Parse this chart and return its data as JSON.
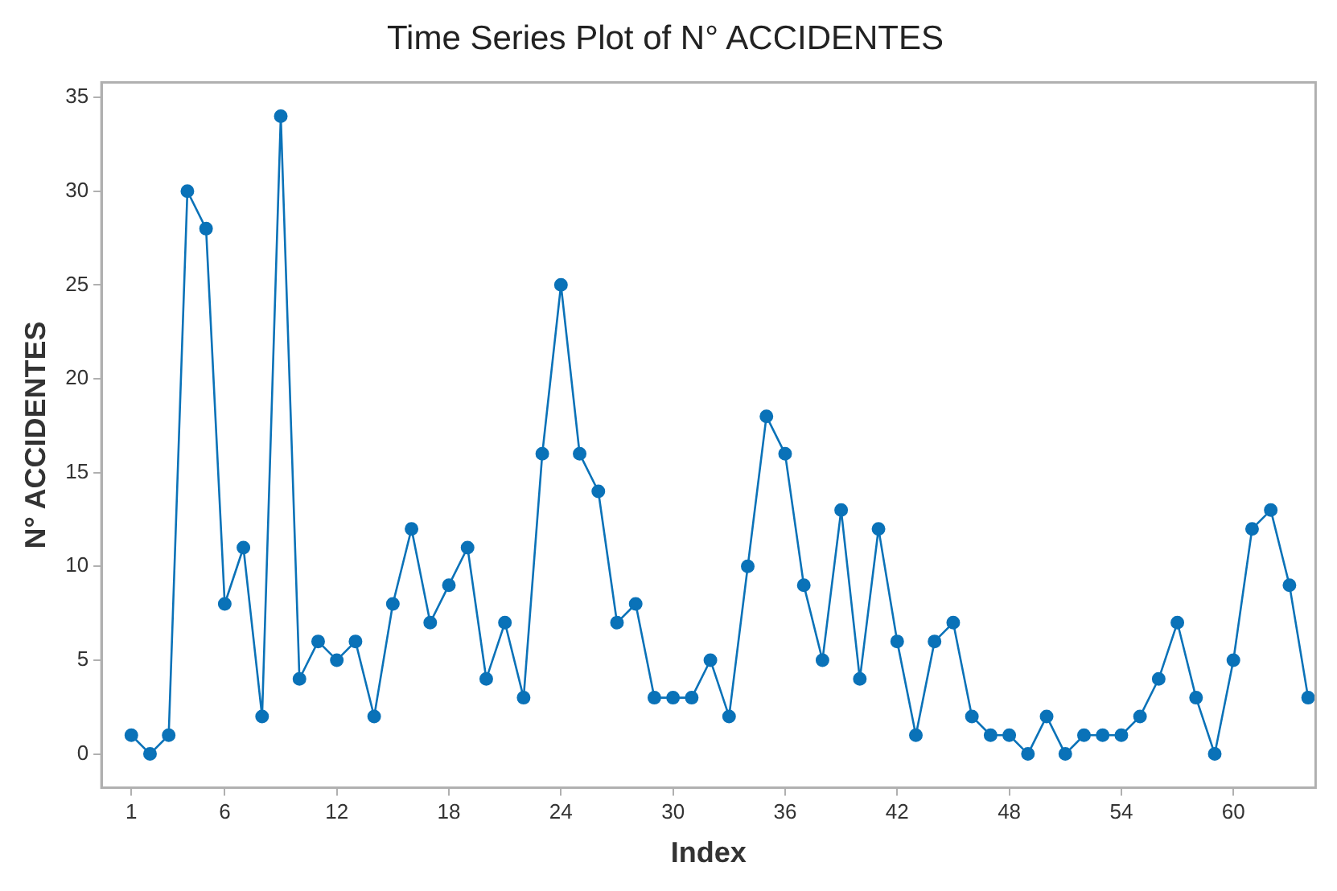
{
  "chart_data": {
    "type": "line",
    "title": "Time Series Plot of N° ACCIDENTES",
    "xlabel": "Index",
    "ylabel": "N° ACCIDENTES",
    "x": [
      1,
      2,
      3,
      4,
      5,
      6,
      7,
      8,
      9,
      10,
      11,
      12,
      13,
      14,
      15,
      16,
      17,
      18,
      19,
      20,
      21,
      22,
      23,
      24,
      25,
      26,
      27,
      28,
      29,
      30,
      31,
      32,
      33,
      34,
      35,
      36,
      37,
      38,
      39,
      40,
      41,
      42,
      43,
      44,
      45,
      46,
      47,
      48,
      49,
      50,
      51,
      52,
      53,
      54,
      55,
      56,
      57,
      58,
      59,
      60,
      61,
      62,
      63,
      64
    ],
    "series": [
      {
        "color": "#0a72b8",
        "values": [
          1,
          0,
          1,
          30,
          28,
          8,
          11,
          2,
          34,
          4,
          6,
          5,
          6,
          2,
          8,
          12,
          7,
          9,
          11,
          4,
          7,
          3,
          16,
          25,
          16,
          14,
          7,
          8,
          3,
          3,
          3,
          5,
          2,
          10,
          18,
          16,
          9,
          5,
          13,
          4,
          12,
          6,
          1,
          6,
          7,
          2,
          1,
          1,
          0,
          2,
          0,
          1,
          1,
          1,
          2,
          4,
          7,
          3,
          0,
          5,
          12,
          13,
          9,
          3
        ]
      }
    ],
    "xlim": [
      -0.6,
      64.4
    ],
    "xticks": [
      1,
      6,
      12,
      18,
      24,
      30,
      36,
      42,
      48,
      54,
      60
    ],
    "ylim": [
      -1.8,
      35.8
    ],
    "yticks": [
      0,
      5,
      10,
      15,
      20,
      25,
      30,
      35
    ],
    "grid": false,
    "legend": false,
    "marker": "circle",
    "line_style": "solid"
  }
}
